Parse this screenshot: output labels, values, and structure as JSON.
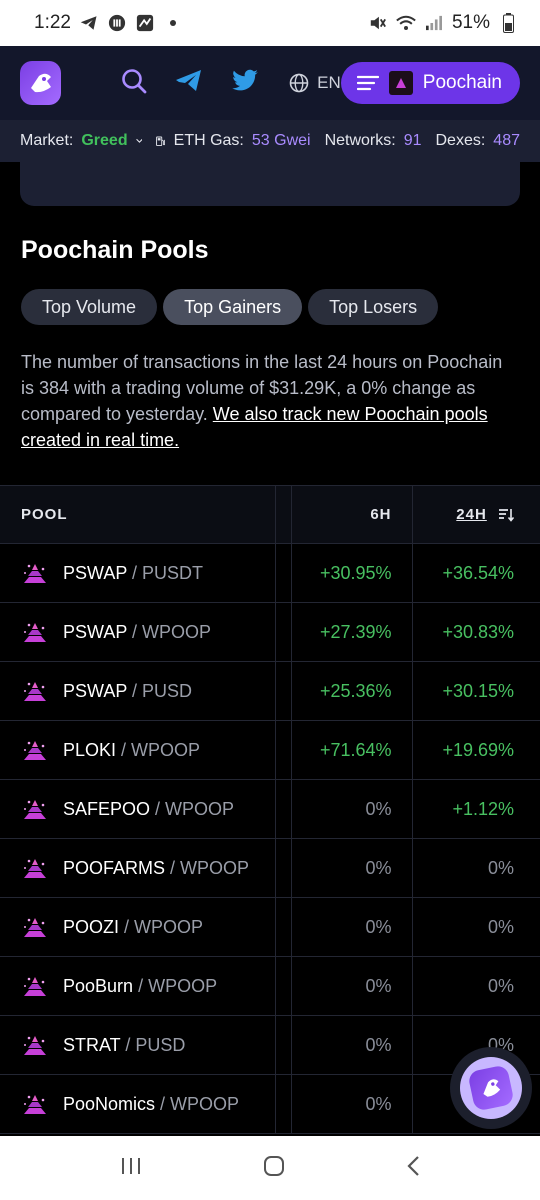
{
  "status_bar": {
    "time": "1:22",
    "battery": "51%"
  },
  "header": {
    "lang": "EN",
    "chain_name": "Poochain"
  },
  "market_bar": {
    "market_label": "Market:",
    "market_value": "Greed",
    "gas_label": "ETH Gas:",
    "gas_value": "53 Gwei",
    "networks_label": "Networks:",
    "networks_value": "91",
    "dexes_label": "Dexes:",
    "dexes_value": "487"
  },
  "page": {
    "title": "Poochain Pools",
    "tabs": [
      {
        "label": "Top Volume",
        "active": false
      },
      {
        "label": "Top Gainers",
        "active": true
      },
      {
        "label": "Top Losers",
        "active": false
      }
    ],
    "description": "The number of transactions in the last 24 hours on Poochain is 384 with a trading volume of $31.29K, a 0% change as compared to yesterday.",
    "description_link": "We also track new Poochain pools created in real time."
  },
  "table": {
    "headers": {
      "pool": "POOL",
      "h6": "6H",
      "h24": "24H"
    },
    "rows": [
      {
        "base": "PSWAP",
        "quote": "/ PUSDT",
        "h6": "+30.95%",
        "h24": "+36.54%"
      },
      {
        "base": "PSWAP",
        "quote": "/ WPOOP",
        "h6": "+27.39%",
        "h24": "+30.83%"
      },
      {
        "base": "PSWAP",
        "quote": "/ PUSD",
        "h6": "+25.36%",
        "h24": "+30.15%"
      },
      {
        "base": "PLOKI",
        "quote": "/ WPOOP",
        "h6": "+71.64%",
        "h24": "+19.69%"
      },
      {
        "base": "SAFEPOO",
        "quote": "/ WPOOP",
        "h6": "0%",
        "h24": "+1.12%"
      },
      {
        "base": "POOFARMS",
        "quote": "/ WPOOP",
        "h6": "0%",
        "h24": "0%"
      },
      {
        "base": "POOZI",
        "quote": "/ WPOOP",
        "h6": "0%",
        "h24": "0%"
      },
      {
        "base": "PooBurn",
        "quote": "/ WPOOP",
        "h6": "0%",
        "h24": "0%"
      },
      {
        "base": "STRAT",
        "quote": "/ PUSD",
        "h6": "0%",
        "h24": "0%"
      },
      {
        "base": "PooNomics",
        "quote": "/ WPOOP",
        "h6": "0%",
        "h24": ""
      }
    ]
  },
  "colors": {
    "accent": "#6d35e8",
    "positive": "#48c061",
    "header_bg": "#13172b"
  }
}
